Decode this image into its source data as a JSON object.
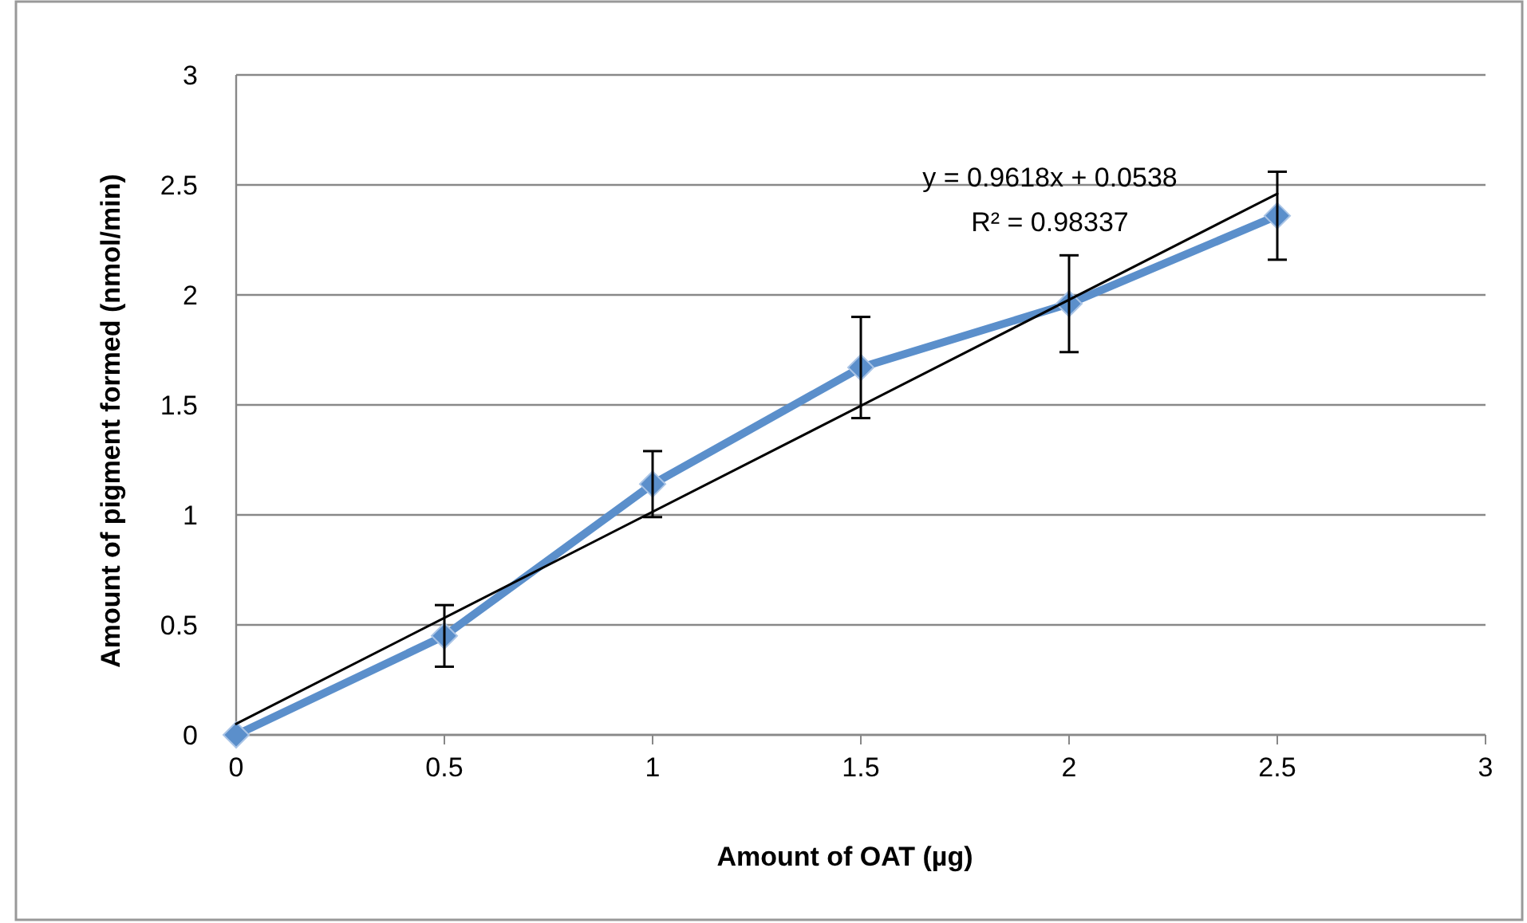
{
  "chart_data": {
    "type": "line",
    "xlabel": "Amount of OAT (µg)",
    "ylabel": "Amount of pigment formed (nmol/min)",
    "annotations": [
      "y = 0.9618x + 0.0538",
      "R² = 0.98337"
    ],
    "x": [
      0,
      0.5,
      1,
      1.5,
      2,
      2.5
    ],
    "series": [
      {
        "color": "#5b8fcb",
        "values": [
          0,
          0.45,
          1.14,
          1.67,
          1.96,
          2.36
        ],
        "errors": [
          null,
          0.14,
          0.15,
          0.23,
          0.22,
          0.2
        ],
        "marker": "diamond"
      },
      {
        "color": "#000000",
        "x": [
          0,
          2.5
        ],
        "values": [
          0.05,
          2.46
        ],
        "marker": "none"
      }
    ],
    "xlim": [
      0,
      3
    ],
    "xticks": [
      0,
      0.5,
      1,
      1.5,
      2,
      2.5,
      3
    ],
    "ylim": [
      0,
      3
    ],
    "yticks": [
      0,
      0.5,
      1,
      1.5,
      2,
      2.5,
      3
    ],
    "grid": "y"
  }
}
